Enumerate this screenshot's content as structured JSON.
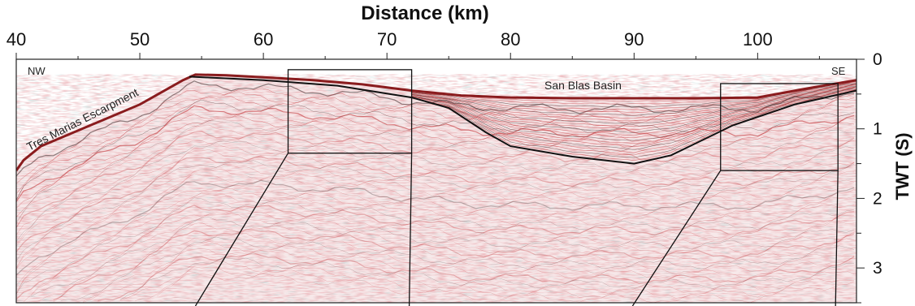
{
  "chart_data": {
    "type": "seismic-profile",
    "x_axis": {
      "label": "Distance (km)",
      "ticks": [
        40,
        50,
        60,
        70,
        80,
        90,
        100
      ],
      "range": [
        40,
        108
      ],
      "position": "top"
    },
    "y_axis": {
      "label": "TWT (S)",
      "ticks": [
        0,
        1,
        2,
        3
      ],
      "range": [
        0,
        3.5
      ],
      "position": "right",
      "inverted": true
    },
    "annotations": {
      "nw": "NW",
      "se": "SE",
      "escarpment": "Tres Marias Escarpment",
      "basin": "San Blas Basin"
    },
    "interpreted_horizon": {
      "description_points_km_twt": [
        [
          54,
          0.25
        ],
        [
          60,
          0.3
        ],
        [
          66,
          0.38
        ],
        [
          72,
          0.55
        ],
        [
          75,
          0.7
        ],
        [
          78,
          1.05
        ],
        [
          80,
          1.25
        ],
        [
          85,
          1.4
        ],
        [
          90,
          1.5
        ],
        [
          93,
          1.38
        ],
        [
          98,
          0.95
        ],
        [
          103,
          0.65
        ],
        [
          108,
          0.45
        ]
      ]
    },
    "zoom_boxes": [
      {
        "name": "box-left",
        "x_range_km": [
          62,
          72
        ],
        "twt_range_s": [
          0.15,
          1.35
        ]
      },
      {
        "name": "box-right",
        "x_range_km": [
          97,
          106.5
        ],
        "twt_range_s": [
          0.35,
          1.6
        ]
      }
    ],
    "colors": {
      "reflector_red": "#c0282b",
      "reflector_dark": "#2a1a1a",
      "background": "#ffffff",
      "noise_cyan": "#6aa9a9"
    }
  }
}
